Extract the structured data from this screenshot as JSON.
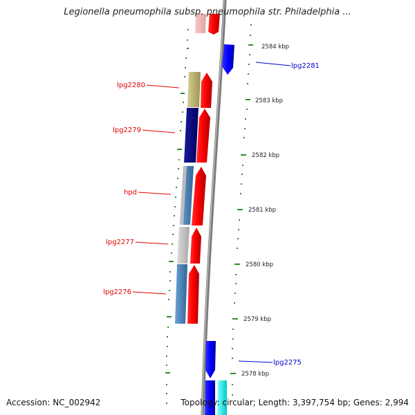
{
  "title": "Legionella pneumophila subsp. pneumophila str. Philadelphia ...",
  "footer": {
    "accession": "Accession: NC_002942",
    "summary": "Topology: circular; Length: 3,397,754 bp; Genes: 2,994"
  },
  "ticks": [
    "2584 kbp",
    "2583 kbp",
    "2582 kbp",
    "2581 kbp",
    "2580 kbp",
    "2579 kbp",
    "2578 kbp"
  ],
  "genes": {
    "lpg2281": "lpg2281",
    "lpg2280": "lpg2280",
    "lpg2279": "lpg2279",
    "hpd": "hpd",
    "lpg2277": "lpg2277",
    "lpg2276": "lpg2276",
    "lpg2275": "lpg2275"
  },
  "colors": {
    "cds_forward": "#0000ff",
    "cds_reverse": "#ff0000",
    "backbone": "#808080",
    "gc_ticks": "#006600",
    "cog_olive": "#bdb36b",
    "cog_navy": "#000080",
    "cog_steel": "#4682b4",
    "cog_gray": "#c0c0c0",
    "cog_cyan": "#00ffff"
  }
}
